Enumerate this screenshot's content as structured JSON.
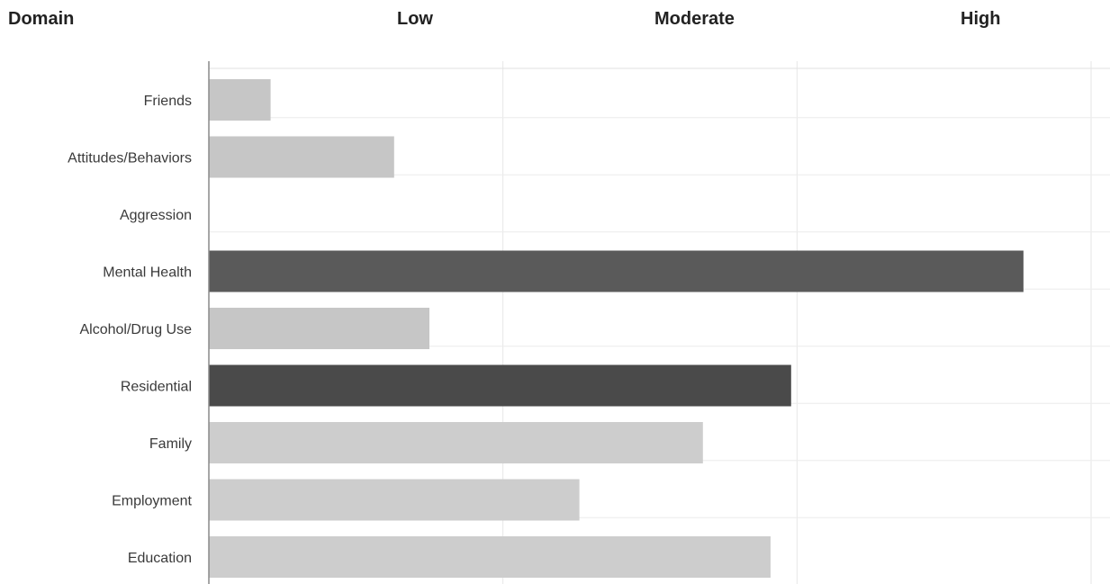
{
  "header": {
    "domain_label": "Domain",
    "levels": [
      "Low",
      "Moderate",
      "High"
    ]
  },
  "chart_data": {
    "type": "bar",
    "orientation": "horizontal",
    "title": "",
    "xlabel": "",
    "ylabel": "Domain",
    "x_scale_labels": [
      "Low",
      "Moderate",
      "High"
    ],
    "xlim": [
      0,
      3
    ],
    "grid": true,
    "categories": [
      "Friends",
      "Attitudes/Behaviors",
      "Aggression",
      "Mental Health",
      "Alcohol/Drug Use",
      "Residential",
      "Family",
      "Employment",
      "Education"
    ],
    "values": [
      0.21,
      0.63,
      0.0,
      2.77,
      0.75,
      1.98,
      1.68,
      1.26,
      1.91
    ],
    "bar_colors": [
      "#c6c6c6",
      "#c6c6c6",
      "#c6c6c6",
      "#5a5a5a",
      "#c6c6c6",
      "#4a4a4a",
      "#cdcdcd",
      "#cdcdcd",
      "#cdcdcd"
    ]
  }
}
